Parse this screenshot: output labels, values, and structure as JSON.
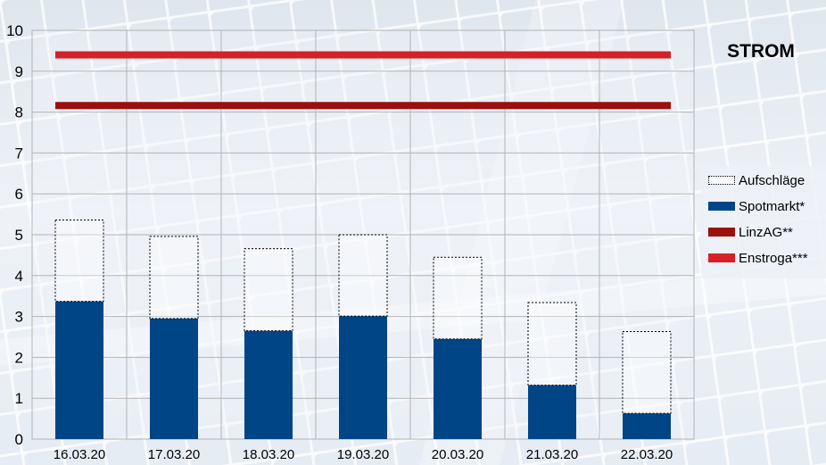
{
  "title": "STROM",
  "colors": {
    "aufschlaege_border": "#000000",
    "spotmarkt": "#004586",
    "linzag": "#9c0f0f",
    "enstroga": "#d42026"
  },
  "chart_data": {
    "type": "bar",
    "stacked": true,
    "title": "STROM",
    "categories": [
      "16.03.20",
      "17.03.20",
      "18.03.20",
      "19.03.20",
      "20.03.20",
      "21.03.20",
      "22.03.20"
    ],
    "ylim": [
      0,
      10
    ],
    "yticks": [
      "0",
      "1",
      "2",
      "3",
      "4",
      "5",
      "6",
      "7",
      "8",
      "9",
      "10"
    ],
    "grid": true,
    "legend_position": "right",
    "series": [
      {
        "name": "Spotmarkt*",
        "kind": "bar",
        "values": [
          3.37,
          2.95,
          2.65,
          3.01,
          2.45,
          1.32,
          0.63
        ]
      },
      {
        "name": "Aufschläge",
        "kind": "bar",
        "style": "dotted-outline",
        "values": [
          1.99,
          2.01,
          2.01,
          1.99,
          2.0,
          2.02,
          2.0
        ]
      },
      {
        "name": "LinzAG**",
        "kind": "line",
        "values": [
          8.16,
          8.16,
          8.16,
          8.16,
          8.16,
          8.16,
          8.16
        ]
      },
      {
        "name": "Enstroga***",
        "kind": "line",
        "values": [
          9.4,
          9.4,
          9.4,
          9.4,
          9.4,
          9.4,
          9.4
        ]
      }
    ]
  },
  "legend": {
    "items": [
      {
        "label": "Aufschläge",
        "style": "dotted"
      },
      {
        "label": "Spotmarkt*",
        "color": "#004586"
      },
      {
        "label": "LinzAG**",
        "color": "#9c0f0f"
      },
      {
        "label": "Enstroga***",
        "color": "#d42026"
      }
    ]
  }
}
